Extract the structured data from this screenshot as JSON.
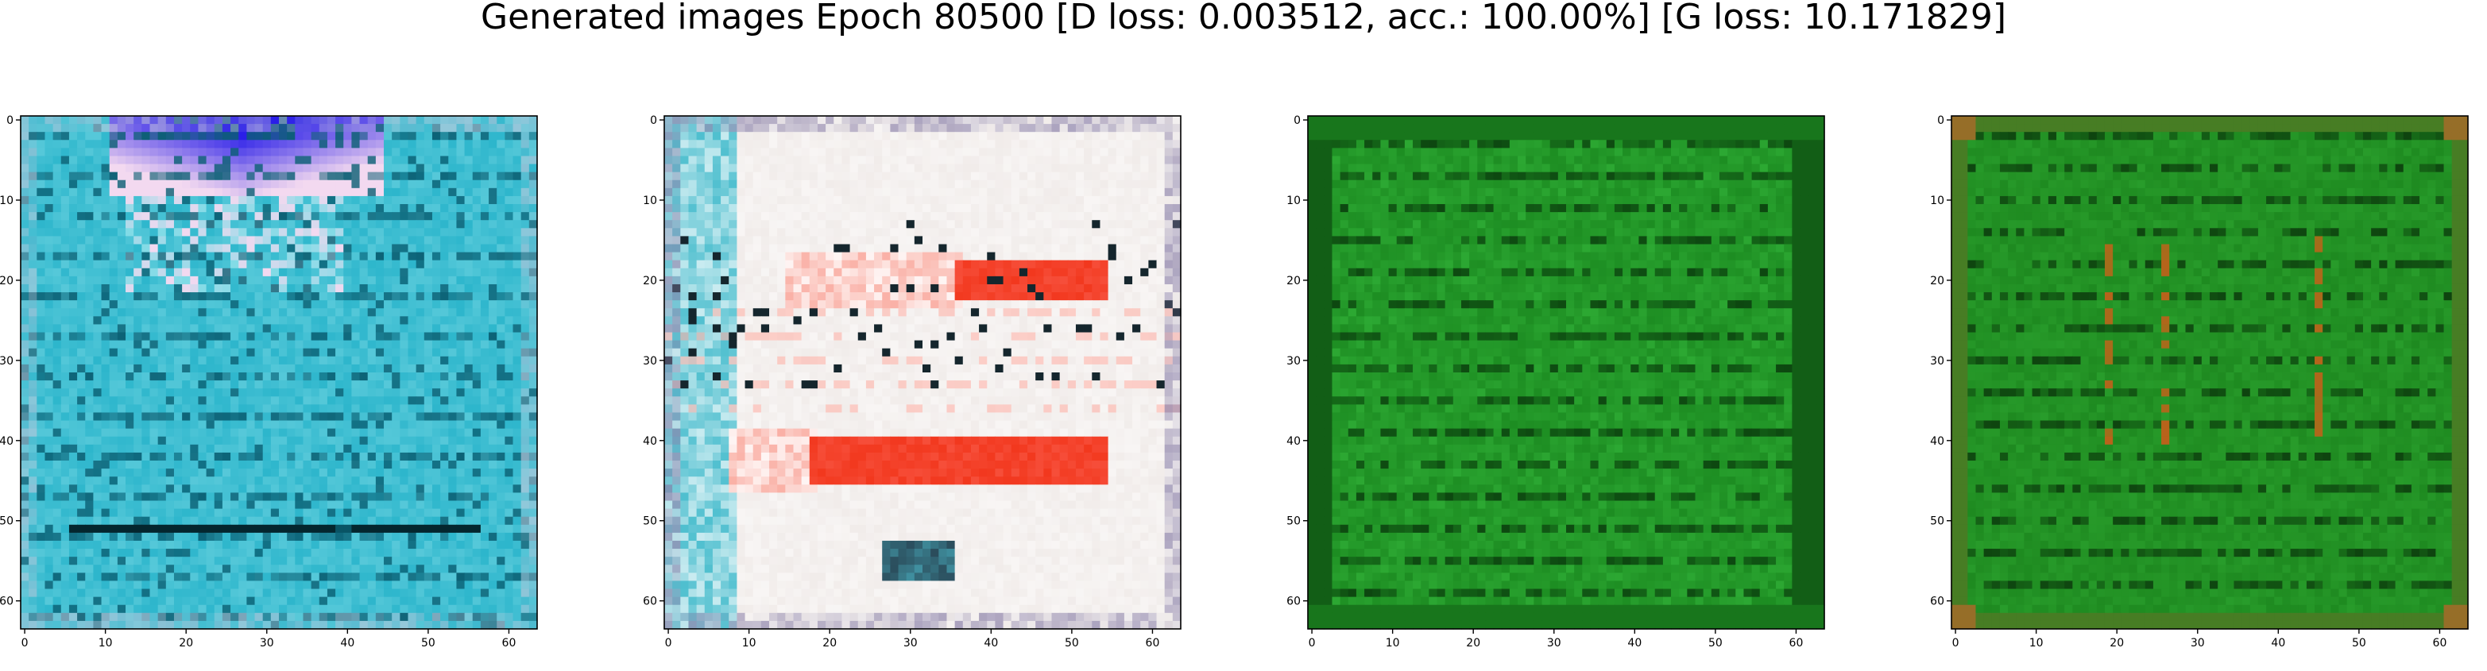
{
  "title": "Generated images Epoch 80500 [D loss: 0.003512, acc.: 100.00%] [G loss: 10.171829]",
  "axes": {
    "x_ticks": [
      "0",
      "10",
      "20",
      "30",
      "40",
      "50",
      "60"
    ],
    "y_ticks": [
      "0",
      "10",
      "20",
      "30",
      "40",
      "50",
      "60"
    ],
    "x_tick_values": [
      0,
      10,
      20,
      30,
      40,
      50,
      60
    ],
    "y_tick_values": [
      0,
      10,
      20,
      30,
      40,
      50,
      60
    ],
    "image_size": 64
  },
  "panels": [
    {
      "id": "generated-image-1",
      "palette": {
        "base": "#2db6cc",
        "light": "#7fdbe6",
        "dark": "#0a5f73",
        "accent": "#2a1ee8",
        "highlight": "#f3d9f0"
      },
      "style": "cyan-blue"
    },
    {
      "id": "generated-image-2",
      "palette": {
        "base": "#f1ecea",
        "light": "#ffffff",
        "dark": "#2a4b5a",
        "accent": "#f2381e",
        "highlight": "#4fbfcf"
      },
      "style": "white-red"
    },
    {
      "id": "generated-image-3",
      "palette": {
        "base": "#1d8d22",
        "light": "#33b43a",
        "dark": "#0b3f0e",
        "accent": "#187a1c",
        "highlight": "#2aa330"
      },
      "style": "green"
    },
    {
      "id": "generated-image-4",
      "palette": {
        "base": "#1e8a20",
        "light": "#2fa832",
        "dark": "#0c3c0d",
        "accent": "#b9621b",
        "highlight": "#8a7a1a"
      },
      "style": "green-orange"
    }
  ]
}
